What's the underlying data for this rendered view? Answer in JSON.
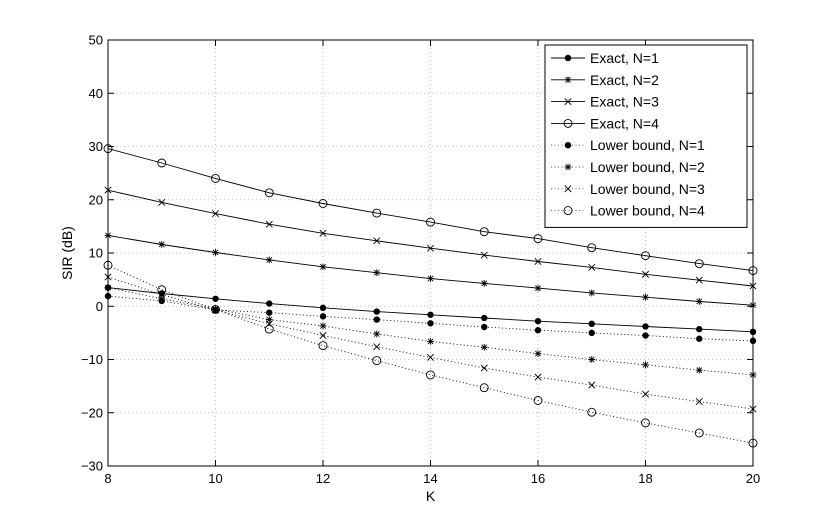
{
  "chart_data": {
    "type": "line",
    "title": "",
    "xlabel": "K",
    "ylabel": "SIR (dB)",
    "xlim": [
      8,
      20
    ],
    "ylim": [
      -30,
      50
    ],
    "xticks": [
      "8",
      "10",
      "12",
      "14",
      "16",
      "18",
      "20"
    ],
    "yticks": [
      "−30",
      "−20",
      "−10",
      "0",
      "10",
      "20",
      "30",
      "40",
      "50"
    ],
    "grid": true,
    "legend_position": "top-right",
    "x": [
      8,
      9,
      10,
      11,
      12,
      13,
      14,
      15,
      16,
      17,
      18,
      19,
      20
    ],
    "series": [
      {
        "name": "Exact, N=1",
        "line": "solid",
        "marker": "dot",
        "values": [
          3.5,
          2.4,
          1.4,
          0.5,
          -0.3,
          -1.0,
          -1.6,
          -2.2,
          -2.8,
          -3.3,
          -3.8,
          -4.3,
          -4.8
        ]
      },
      {
        "name": "Exact, N=2",
        "line": "solid",
        "marker": "star",
        "values": [
          13.3,
          11.6,
          10.1,
          8.7,
          7.4,
          6.3,
          5.2,
          4.3,
          3.4,
          2.5,
          1.7,
          0.9,
          0.2
        ]
      },
      {
        "name": "Exact, N=3",
        "line": "solid",
        "marker": "x",
        "values": [
          21.8,
          19.5,
          17.4,
          15.4,
          13.7,
          12.3,
          10.9,
          9.6,
          8.4,
          7.3,
          6.0,
          4.9,
          3.8
        ]
      },
      {
        "name": "Exact, N=4",
        "line": "solid",
        "marker": "circle",
        "values": [
          29.6,
          26.9,
          24.0,
          21.3,
          19.3,
          17.5,
          15.8,
          14.0,
          12.7,
          11.0,
          9.5,
          8.0,
          6.7
        ]
      },
      {
        "name": "Lower bound, N=1",
        "line": "dotted",
        "marker": "dot",
        "values": [
          1.9,
          1.0,
          -0.7,
          -1.2,
          -1.9,
          -2.5,
          -3.2,
          -3.9,
          -4.5,
          -5.0,
          -5.5,
          -6.1,
          -6.5
        ]
      },
      {
        "name": "Lower bound, N=2",
        "line": "dotted",
        "marker": "star",
        "values": [
          3.5,
          1.4,
          -0.5,
          -2.5,
          -3.7,
          -5.2,
          -6.6,
          -7.7,
          -8.9,
          -10.0,
          -11.0,
          -12.0,
          -12.9
        ]
      },
      {
        "name": "Lower bound, N=3",
        "line": "dotted",
        "marker": "x",
        "values": [
          5.5,
          2.2,
          -0.7,
          -3.3,
          -5.5,
          -7.6,
          -9.6,
          -11.6,
          -13.3,
          -14.8,
          -16.5,
          -17.9,
          -19.3
        ]
      },
      {
        "name": "Lower bound, N=4",
        "line": "dotted",
        "marker": "circle",
        "values": [
          7.7,
          3.1,
          -0.6,
          -4.3,
          -7.4,
          -10.2,
          -12.9,
          -15.3,
          -17.7,
          -19.9,
          -21.9,
          -23.8,
          -25.7
        ]
      }
    ]
  }
}
